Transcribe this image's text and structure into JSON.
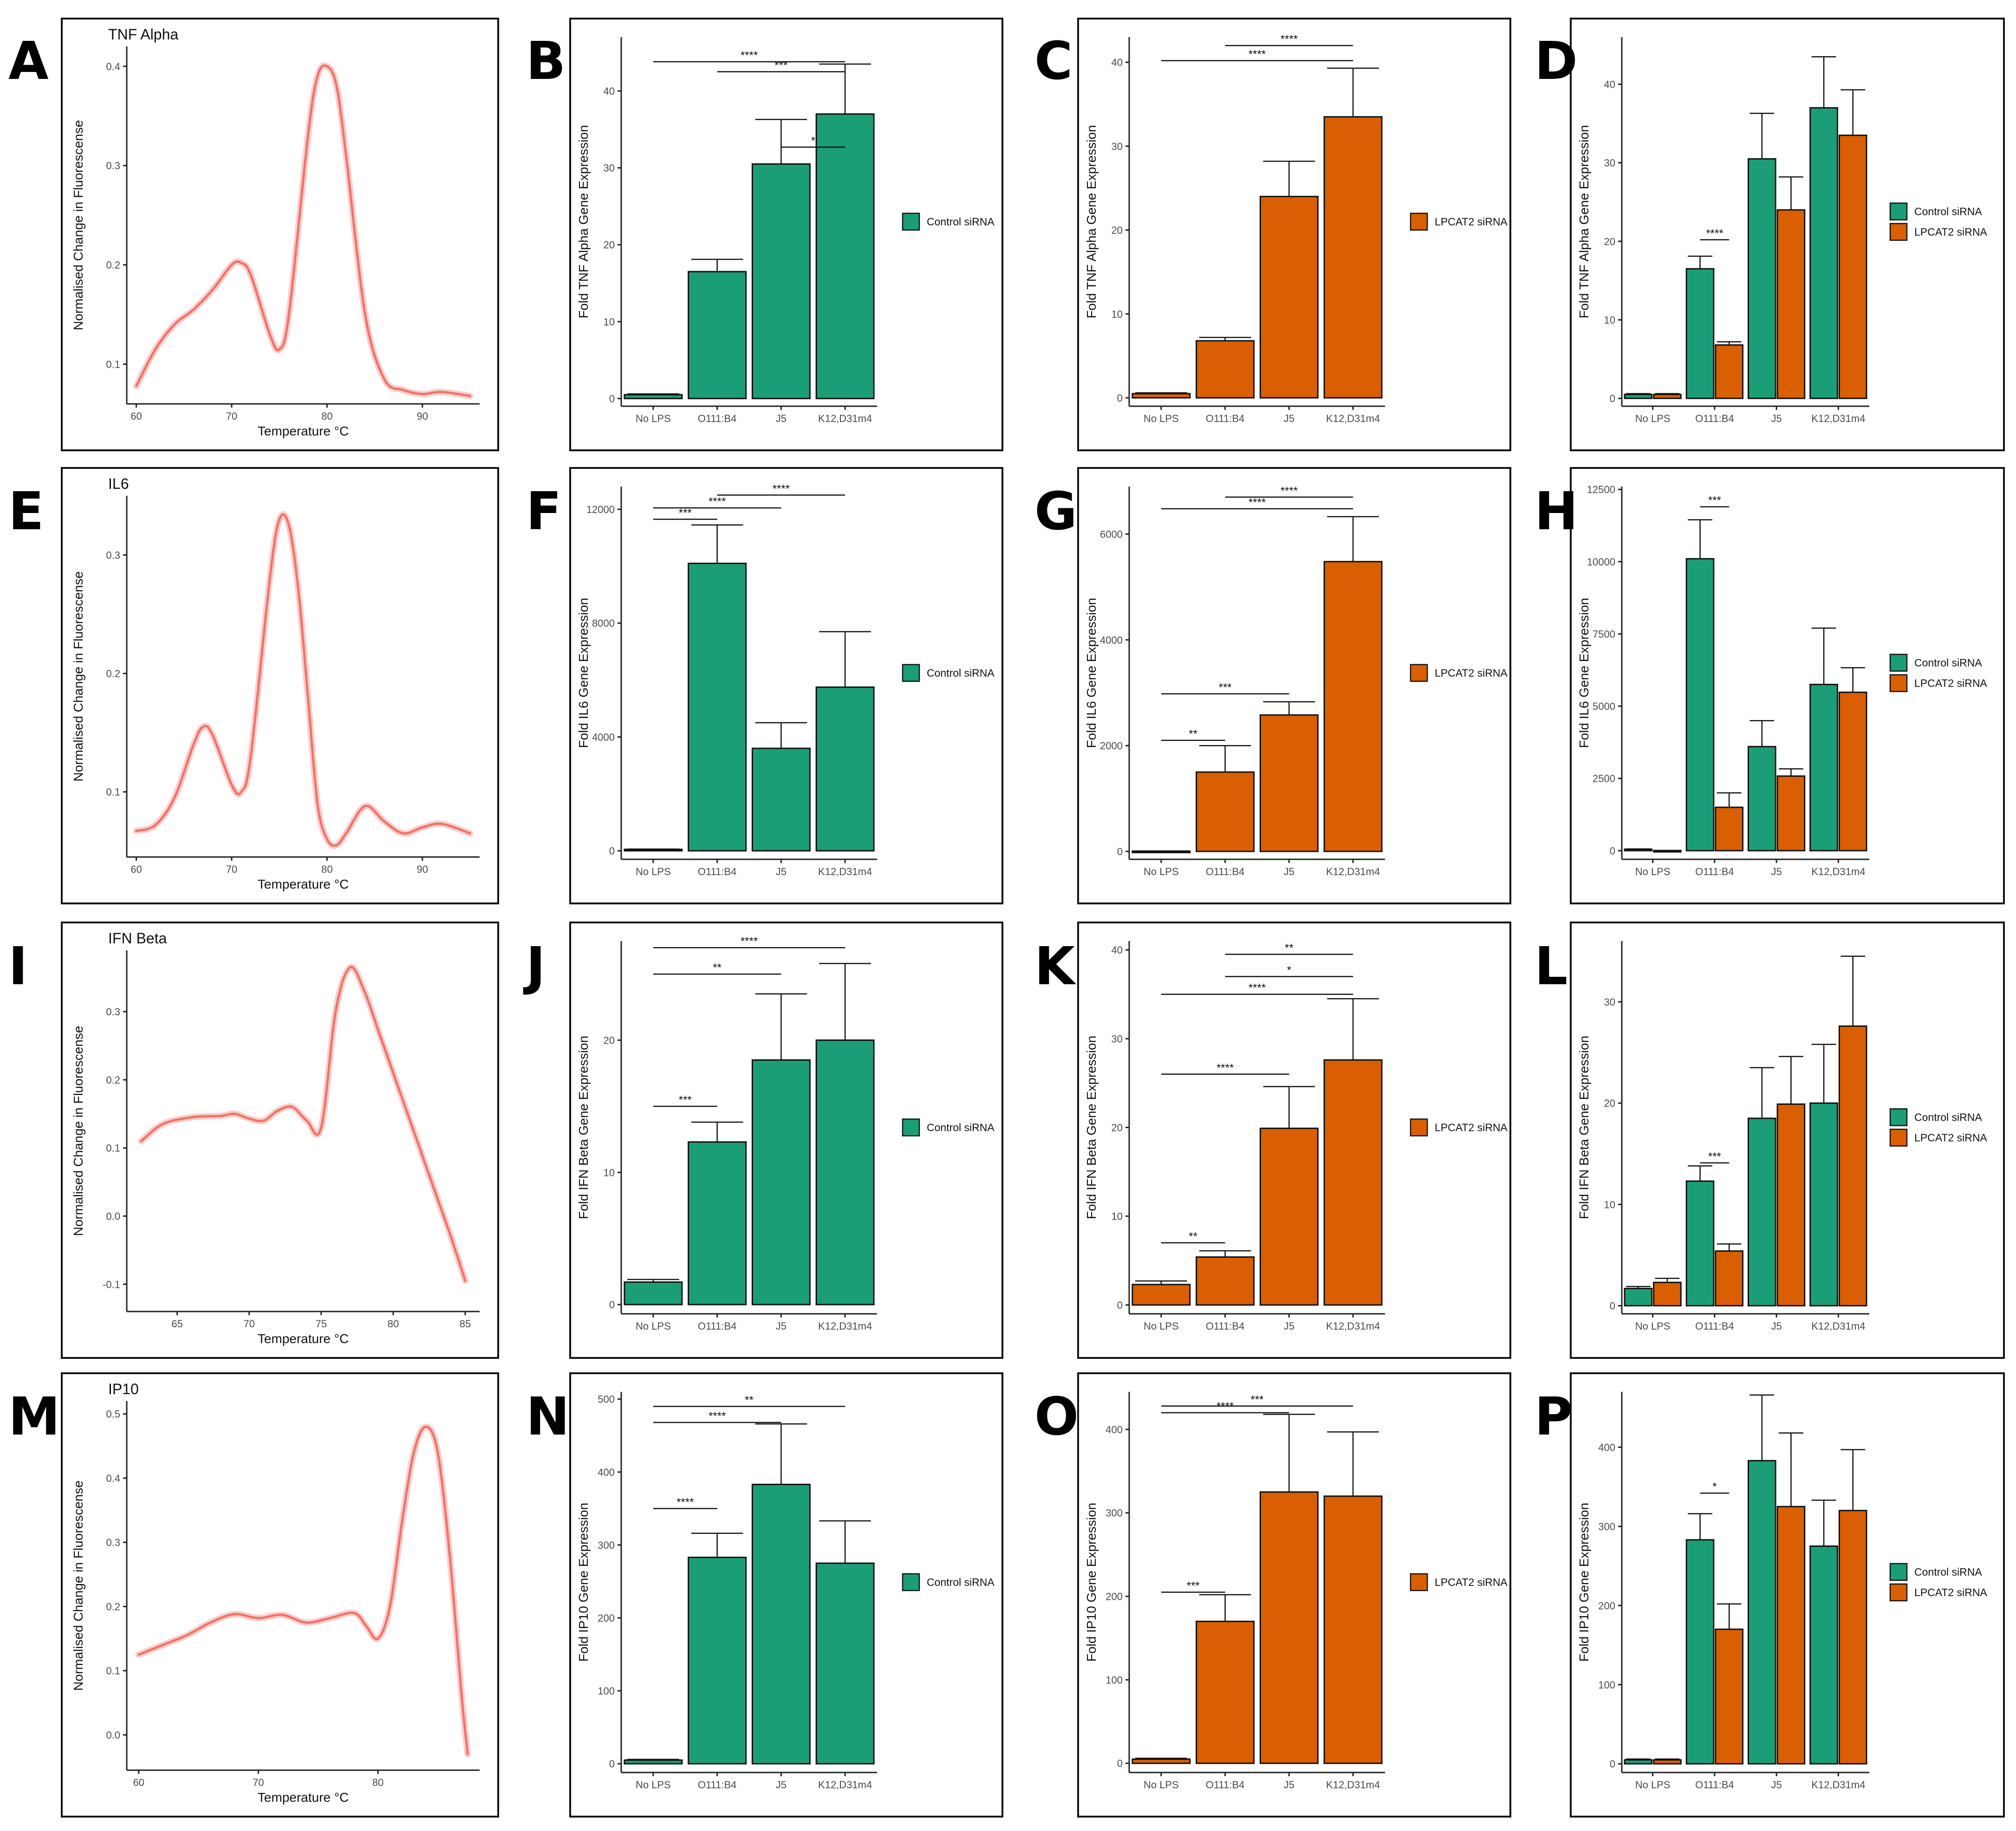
{
  "colors": {
    "control": "#1b9e77",
    "lpcat2": "#d95f02",
    "melt_line": "#f0736a",
    "melt_band": "#f5a7a2"
  },
  "legend": {
    "control": "Control siRNA",
    "lpcat2": "LPCAT2 siRNA"
  },
  "categories": [
    "No LPS",
    "O111:B4",
    "J5",
    "K12,D31m4"
  ],
  "chart_data": [
    {
      "panel": "A",
      "type": "line",
      "title": "TNF Alpha",
      "xlabel": "Temperature °C",
      "ylabel": "Normalised Change in Fluorescense",
      "xlim": [
        59,
        96
      ],
      "ylim": [
        0.06,
        0.42
      ],
      "xticks": [
        60,
        70,
        80,
        90
      ],
      "yticks": [
        0.1,
        0.2,
        0.3,
        0.4
      ],
      "x": [
        60,
        62,
        64,
        66,
        68,
        70,
        71,
        72,
        74,
        75,
        76,
        78,
        79,
        80,
        81,
        82,
        84,
        86,
        88,
        90,
        92,
        95
      ],
      "y": [
        0.078,
        0.115,
        0.14,
        0.155,
        0.175,
        0.2,
        0.202,
        0.19,
        0.13,
        0.115,
        0.15,
        0.33,
        0.39,
        0.4,
        0.38,
        0.31,
        0.15,
        0.085,
        0.074,
        0.07,
        0.072,
        0.068
      ]
    },
    {
      "panel": "B",
      "type": "bar",
      "ylabel": "Fold TNF Alpha Gene Expression",
      "ylim": [
        -1,
        47
      ],
      "yticks": [
        0,
        10,
        20,
        30,
        40
      ],
      "series": [
        {
          "name": "Control siRNA",
          "color_key": "control",
          "values": [
            0.5,
            16.5,
            30.5,
            37.0
          ],
          "errors": [
            0.1,
            1.6,
            5.8,
            6.5
          ]
        }
      ],
      "significance": [
        {
          "from": 2,
          "to": 3,
          "label": "*",
          "y": 32.7
        },
        {
          "from": 0,
          "to": 3,
          "label": "****",
          "y": 43.8
        },
        {
          "from": 1,
          "to": 3,
          "label": "***",
          "y": 42.5
        }
      ],
      "legend": "control"
    },
    {
      "panel": "C",
      "type": "bar",
      "ylabel": "Fold TNF Alpha Gene Expression",
      "ylim": [
        -1,
        43
      ],
      "yticks": [
        0,
        10,
        20,
        30,
        40
      ],
      "series": [
        {
          "name": "LPCAT2 siRNA",
          "color_key": "lpcat2",
          "values": [
            0.5,
            6.8,
            24.0,
            33.5
          ],
          "errors": [
            0.1,
            0.4,
            4.2,
            5.8
          ]
        }
      ],
      "significance": [
        {
          "from": 0,
          "to": 3,
          "label": "****",
          "y": 40.2
        },
        {
          "from": 1,
          "to": 3,
          "label": "****",
          "y": 42.0
        }
      ],
      "legend": "lpcat2"
    },
    {
      "panel": "D",
      "type": "grouped_bar",
      "ylabel": "Fold TNF Alpha Gene Expression",
      "ylim": [
        -1,
        46
      ],
      "yticks": [
        0,
        10,
        20,
        30,
        40
      ],
      "series": [
        {
          "name": "Control siRNA",
          "color_key": "control",
          "values": [
            0.5,
            16.5,
            30.5,
            37.0
          ],
          "errors": [
            0.1,
            1.6,
            5.8,
            6.5
          ]
        },
        {
          "name": "LPCAT2 siRNA",
          "color_key": "lpcat2",
          "values": [
            0.5,
            6.8,
            24.0,
            33.5
          ],
          "errors": [
            0.1,
            0.4,
            4.2,
            5.8
          ]
        }
      ],
      "significance": [
        {
          "from": "1a",
          "to": "1b",
          "label": "****",
          "y": 20.2
        }
      ],
      "legend": "both"
    },
    {
      "panel": "E",
      "type": "line",
      "title": "IL6",
      "xlabel": "Temperature °C",
      "ylabel": "Normalised Change in Fluorescense",
      "xlim": [
        59,
        96
      ],
      "ylim": [
        0.045,
        0.35
      ],
      "xticks": [
        60,
        70,
        80,
        90
      ],
      "yticks": [
        0.1,
        0.2,
        0.3
      ],
      "x": [
        60,
        62,
        64,
        66,
        67,
        68,
        70,
        71,
        72,
        74,
        75,
        76,
        77,
        78,
        79,
        80,
        81,
        82,
        84,
        86,
        88,
        90,
        92,
        95
      ],
      "y": [
        0.067,
        0.072,
        0.095,
        0.14,
        0.155,
        0.148,
        0.106,
        0.1,
        0.13,
        0.28,
        0.33,
        0.325,
        0.27,
        0.18,
        0.09,
        0.06,
        0.055,
        0.065,
        0.088,
        0.075,
        0.065,
        0.07,
        0.073,
        0.065
      ]
    },
    {
      "panel": "F",
      "type": "bar",
      "ylabel": "Fold IL6 Gene Expression",
      "ylim": [
        -300,
        12800
      ],
      "yticks": [
        0,
        4000,
        8000,
        12000
      ],
      "series": [
        {
          "name": "Control siRNA",
          "color_key": "control",
          "values": [
            50,
            10100,
            3600,
            5750
          ],
          "errors": [
            10,
            1350,
            900,
            1950
          ]
        }
      ],
      "significance": [
        {
          "from": 0,
          "to": 1,
          "label": "***",
          "y": 11650
        },
        {
          "from": 0,
          "to": 2,
          "label": "****",
          "y": 12050
        },
        {
          "from": 1,
          "to": 3,
          "label": "****",
          "y": 12500
        }
      ],
      "legend": "control"
    },
    {
      "panel": "G",
      "type": "bar",
      "ylabel": "Fold IL6 Gene Expression",
      "ylim": [
        -150,
        6900
      ],
      "yticks": [
        0,
        2000,
        4000,
        6000
      ],
      "series": [
        {
          "name": "LPCAT2 siRNA",
          "color_key": "lpcat2",
          "values": [
            5,
            1500,
            2580,
            5480
          ],
          "errors": [
            2,
            500,
            250,
            850
          ]
        }
      ],
      "significance": [
        {
          "from": 0,
          "to": 1,
          "label": "**",
          "y": 2100
        },
        {
          "from": 0,
          "to": 2,
          "label": "***",
          "y": 2980
        },
        {
          "from": 0,
          "to": 3,
          "label": "****",
          "y": 6480
        },
        {
          "from": 1,
          "to": 3,
          "label": "****",
          "y": 6700
        }
      ],
      "legend": "lpcat2"
    },
    {
      "panel": "H",
      "type": "grouped_bar",
      "ylabel": "Fold IL6 Gene Expression",
      "ylim": [
        -300,
        12600
      ],
      "yticks": [
        0,
        2500,
        5000,
        7500,
        10000,
        12500
      ],
      "series": [
        {
          "name": "Control siRNA",
          "color_key": "control",
          "values": [
            50,
            10100,
            3600,
            5750
          ],
          "errors": [
            10,
            1350,
            900,
            1950
          ]
        },
        {
          "name": "LPCAT2 siRNA",
          "color_key": "lpcat2",
          "values": [
            5,
            1500,
            2580,
            5480
          ],
          "errors": [
            2,
            500,
            250,
            850
          ]
        }
      ],
      "significance": [
        {
          "from": "1a",
          "to": "1b",
          "label": "***",
          "y": 11900
        }
      ],
      "legend": "both"
    },
    {
      "panel": "I",
      "type": "line",
      "title": "IFN Beta",
      "xlabel": "Temperature °C",
      "ylabel": "Normalised Change in Fluorescense",
      "xlim": [
        61.5,
        86
      ],
      "ylim": [
        -0.14,
        0.39
      ],
      "xticks": [
        65,
        70,
        75,
        80,
        85
      ],
      "yticks": [
        -0.1,
        0.0,
        0.1,
        0.2,
        0.3
      ],
      "x": [
        62.5,
        64,
        66,
        68,
        69,
        70,
        71,
        72,
        73,
        74,
        75,
        76,
        77,
        78,
        79,
        80,
        81,
        82,
        83,
        84,
        85
      ],
      "y": [
        0.11,
        0.135,
        0.145,
        0.147,
        0.15,
        0.143,
        0.14,
        0.155,
        0.16,
        0.14,
        0.13,
        0.3,
        0.365,
        0.33,
        0.27,
        0.21,
        0.15,
        0.09,
        0.03,
        -0.03,
        -0.095
      ]
    },
    {
      "panel": "J",
      "type": "bar",
      "ylabel": "Fold IFN Beta Gene Expression",
      "ylim": [
        -0.7,
        27.5
      ],
      "yticks": [
        0,
        10,
        20
      ],
      "series": [
        {
          "name": "Control siRNA",
          "color_key": "control",
          "values": [
            1.7,
            12.3,
            18.5,
            20.0
          ],
          "errors": [
            0.2,
            1.5,
            5.0,
            5.8
          ]
        }
      ],
      "significance": [
        {
          "from": 0,
          "to": 1,
          "label": "***",
          "y": 15.0
        },
        {
          "from": 0,
          "to": 2,
          "label": "**",
          "y": 25.0
        },
        {
          "from": 0,
          "to": 3,
          "label": "****",
          "y": 27.0
        }
      ],
      "legend": "control"
    },
    {
      "panel": "K",
      "type": "bar",
      "ylabel": "Fold IFN Beta Gene Expression",
      "ylim": [
        -1,
        41
      ],
      "yticks": [
        0,
        10,
        20,
        30,
        40
      ],
      "series": [
        {
          "name": "LPCAT2 siRNA",
          "color_key": "lpcat2",
          "values": [
            2.3,
            5.4,
            19.9,
            27.6
          ],
          "errors": [
            0.4,
            0.7,
            4.7,
            6.9
          ]
        }
      ],
      "significance": [
        {
          "from": 0,
          "to": 1,
          "label": "**",
          "y": 7.0
        },
        {
          "from": 0,
          "to": 2,
          "label": "****",
          "y": 26.0
        },
        {
          "from": 0,
          "to": 3,
          "label": "****",
          "y": 35.0
        },
        {
          "from": 1,
          "to": 3,
          "label": "*",
          "y": 37.0
        },
        {
          "from": 1,
          "to": 3,
          "label": "**",
          "y": 39.5
        }
      ],
      "legend": "lpcat2"
    },
    {
      "panel": "L",
      "type": "grouped_bar",
      "ylabel": "Fold IFN Beta Gene Expression",
      "ylim": [
        -0.8,
        36
      ],
      "yticks": [
        0,
        10,
        20,
        30
      ],
      "series": [
        {
          "name": "Control siRNA",
          "color_key": "control",
          "values": [
            1.7,
            12.3,
            18.5,
            20.0
          ],
          "errors": [
            0.2,
            1.5,
            5.0,
            5.8
          ]
        },
        {
          "name": "LPCAT2 siRNA",
          "color_key": "lpcat2",
          "values": [
            2.3,
            5.4,
            19.9,
            27.6
          ],
          "errors": [
            0.4,
            0.7,
            4.7,
            6.9
          ]
        }
      ],
      "significance": [
        {
          "from": "1a",
          "to": "1b",
          "label": "***",
          "y": 14.1
        }
      ],
      "legend": "both"
    },
    {
      "panel": "M",
      "type": "line",
      "title": "IP10",
      "xlabel": "Temperature °C",
      "ylabel": "Normalised Change in Fluorescense",
      "xlim": [
        59,
        88.5
      ],
      "ylim": [
        -0.055,
        0.52
      ],
      "xticks": [
        60,
        70,
        80
      ],
      "yticks": [
        0.0,
        0.1,
        0.2,
        0.3,
        0.4,
        0.5
      ],
      "x": [
        60,
        62,
        64,
        66,
        68,
        70,
        72,
        74,
        76,
        78,
        79,
        80,
        81,
        82,
        83,
        84,
        85,
        86,
        87,
        87.5
      ],
      "y": [
        0.125,
        0.14,
        0.155,
        0.175,
        0.188,
        0.182,
        0.187,
        0.175,
        0.182,
        0.19,
        0.17,
        0.15,
        0.2,
        0.33,
        0.44,
        0.48,
        0.44,
        0.28,
        0.06,
        -0.03
      ]
    },
    {
      "panel": "N",
      "type": "bar",
      "ylabel": "Fold IP10 Gene Expression",
      "ylim": [
        -12,
        510
      ],
      "yticks": [
        0,
        100,
        200,
        300,
        400,
        500
      ],
      "series": [
        {
          "name": "Control siRNA",
          "color_key": "control",
          "values": [
            5,
            283,
            383,
            275
          ],
          "errors": [
            1,
            33,
            83,
            58
          ]
        }
      ],
      "significance": [
        {
          "from": 0,
          "to": 1,
          "label": "****",
          "y": 350
        },
        {
          "from": 0,
          "to": 2,
          "label": "****",
          "y": 468
        },
        {
          "from": 0,
          "to": 3,
          "label": "**",
          "y": 490
        }
      ],
      "legend": "control"
    },
    {
      "panel": "O",
      "type": "bar",
      "ylabel": "Fold IP10 Gene Expression",
      "ylim": [
        -11,
        445
      ],
      "yticks": [
        0,
        100,
        200,
        300,
        400
      ],
      "series": [
        {
          "name": "LPCAT2 siRNA",
          "color_key": "lpcat2",
          "values": [
            5,
            170,
            325,
            320
          ],
          "errors": [
            1,
            32,
            93,
            77
          ]
        }
      ],
      "significance": [
        {
          "from": 0,
          "to": 1,
          "label": "***",
          "y": 205
        },
        {
          "from": 0,
          "to": 2,
          "label": "****",
          "y": 420
        },
        {
          "from": 0,
          "to": 3,
          "label": "***",
          "y": 428
        }
      ],
      "legend": "lpcat2"
    },
    {
      "panel": "P",
      "type": "grouped_bar",
      "ylabel": "Fold IP10 Gene Expression",
      "ylim": [
        -11,
        470
      ],
      "yticks": [
        0,
        100,
        200,
        300,
        400
      ],
      "series": [
        {
          "name": "Control siRNA",
          "color_key": "control",
          "values": [
            5,
            283,
            383,
            275
          ],
          "errors": [
            1,
            33,
            83,
            58
          ]
        },
        {
          "name": "LPCAT2 siRNA",
          "color_key": "lpcat2",
          "values": [
            5,
            170,
            325,
            320
          ],
          "errors": [
            1,
            32,
            93,
            77
          ]
        }
      ],
      "significance": [
        {
          "from": "1a",
          "to": "1b",
          "label": "*",
          "y": 342
        }
      ],
      "legend": "both"
    }
  ]
}
